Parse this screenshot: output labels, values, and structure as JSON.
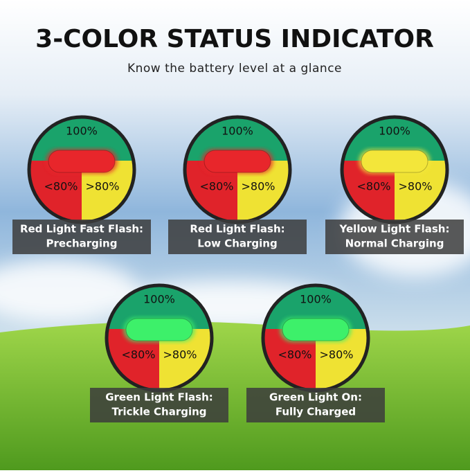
{
  "header": {
    "title": "3-COLOR STATUS INDICATOR",
    "subtitle": "Know the battery level at a glance"
  },
  "indicators": [
    {
      "top": "100%",
      "left": "<80%",
      "right": ">80%",
      "light": "red",
      "light_color": "#e8262b",
      "caption": [
        "Red Light Fast Flash:",
        "Precharging"
      ]
    },
    {
      "top": "100%",
      "left": "<80%",
      "right": ">80%",
      "light": "red",
      "light_color": "#e8262b",
      "caption": [
        "Red Light Flash:",
        "Low Charging"
      ]
    },
    {
      "top": "100%",
      "left": "<80%",
      "right": ">80%",
      "light": "yellow",
      "light_color": "#f3e63a",
      "caption": [
        "Yellow Light Flash:",
        "Normal Charging"
      ]
    },
    {
      "top": "100%",
      "left": "<80%",
      "right": ">80%",
      "light": "green",
      "light_color": "#3df06a",
      "caption": [
        "Green Light Flash:",
        "Trickle Charging"
      ]
    },
    {
      "top": "100%",
      "left": "<80%",
      "right": ">80%",
      "light": "green",
      "light_color": "#3df06a",
      "caption": [
        "Green Light On:",
        "Fully Charged"
      ]
    }
  ]
}
